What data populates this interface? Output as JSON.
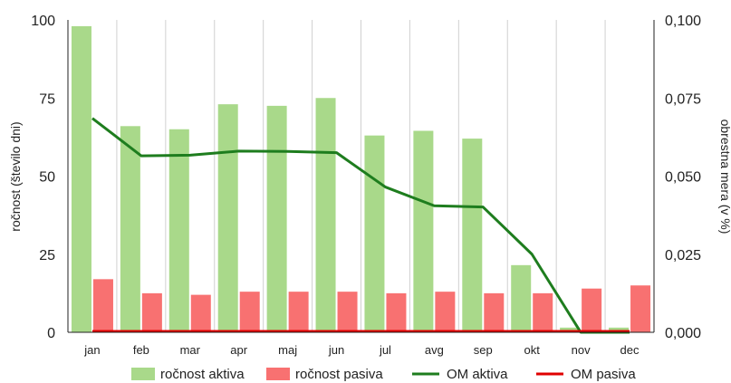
{
  "chart_data": {
    "type": "bar",
    "categories": [
      "jan",
      "feb",
      "mar",
      "apr",
      "maj",
      "jun",
      "jul",
      "avg",
      "sep",
      "okt",
      "nov",
      "dec"
    ],
    "series": [
      {
        "name": "ročnost aktiva",
        "kind": "bar",
        "axis": "left",
        "color": "#a9d98a",
        "values": [
          98,
          66,
          65,
          73,
          72.5,
          75,
          63,
          64.5,
          62,
          21.5,
          1.5,
          1.5
        ]
      },
      {
        "name": "ročnost pasiva",
        "kind": "bar",
        "axis": "left",
        "color": "#f87171",
        "values": [
          17,
          12.5,
          12,
          13,
          13,
          13,
          12.5,
          13,
          12.5,
          12.5,
          14,
          15
        ]
      },
      {
        "name": "OM aktiva",
        "kind": "line",
        "axis": "right",
        "color": "#1e7d1e",
        "values": [
          0.0685,
          0.0565,
          0.0567,
          0.058,
          0.0579,
          0.0575,
          0.0465,
          0.0405,
          0.0401,
          0.025,
          0.0,
          0.0
        ]
      },
      {
        "name": "OM pasiva",
        "kind": "line",
        "axis": "right",
        "color": "#e00000",
        "values": [
          0.0003,
          0.0003,
          0.0003,
          0.0003,
          0.0003,
          0.0003,
          0.0003,
          0.0003,
          0.0003,
          0.0003,
          0.0003,
          0.0003
        ]
      }
    ],
    "ylabel": "ročnost (število dni)",
    "ylabel_right": "obrestna mera (v %)",
    "ylim": [
      0,
      100
    ],
    "ylim_right": [
      0,
      0.1
    ],
    "yticks": [
      "0",
      "25",
      "50",
      "75",
      "100"
    ],
    "yticks_right": [
      "0,000",
      "0,025",
      "0,050",
      "0,075",
      "0,100"
    ],
    "grid": "vertical",
    "legend_position": "bottom"
  }
}
